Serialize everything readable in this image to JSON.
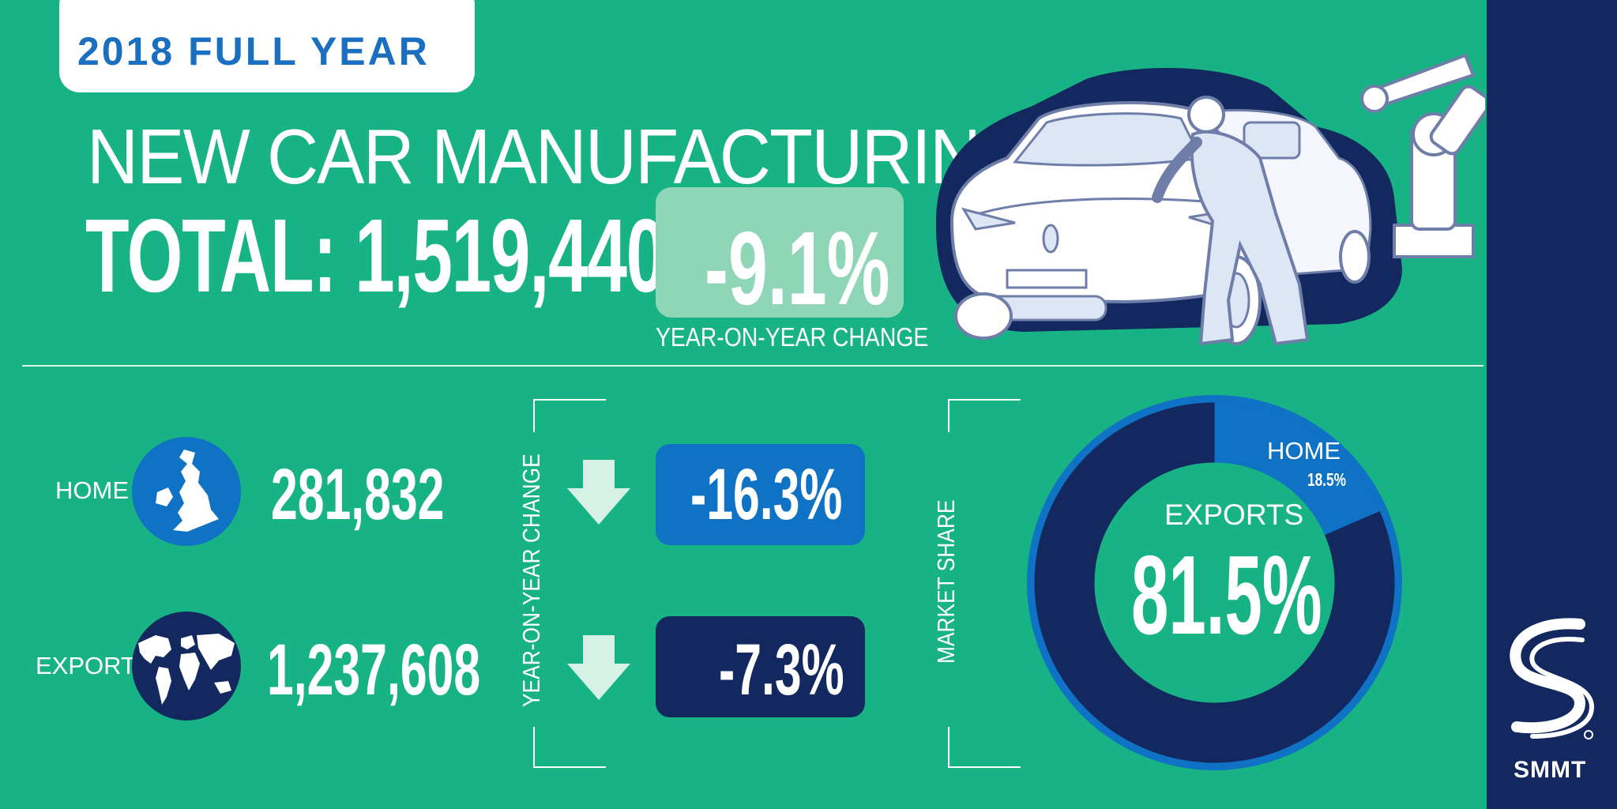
{
  "badge": {
    "label": "2018 FULL YEAR"
  },
  "headline": "NEW CAR MANUFACTURING",
  "total": {
    "text": "TOTAL: 1,519,440",
    "change": "-9.1%",
    "change_label": "YEAR-ON-YEAR CHANGE"
  },
  "rows": [
    {
      "label": "HOME",
      "value": "281,832",
      "change": "-16.3%",
      "icon": "uk-map-icon"
    },
    {
      "label": "EXPORT",
      "value": "1,237,608",
      "change": "-7.3%",
      "icon": "world-map-icon"
    }
  ],
  "yoy_vertical_label": "YEAR-ON-YEAR CHANGE",
  "market_share_label": "MARKET SHARE",
  "donut": {
    "home_label": "HOME",
    "home_value": "18.5%",
    "exports_label": "EXPORTS",
    "exports_value": "81.5%"
  },
  "brand": "SMMT",
  "colors": {
    "background": "#17b384",
    "navy": "#12285e",
    "blue": "#0f72c4",
    "light_green": "#8fd6b8"
  },
  "chart_data": {
    "type": "pie",
    "title": "MARKET SHARE",
    "categories": [
      "HOME",
      "EXPORTS"
    ],
    "values": [
      18.5,
      81.5
    ],
    "total_production": 1519440,
    "units": {
      "HOME": 281832,
      "EXPORT": 1237608
    },
    "yoy_change_percent": {
      "TOTAL": -9.1,
      "HOME": -16.3,
      "EXPORT": -7.3
    }
  }
}
